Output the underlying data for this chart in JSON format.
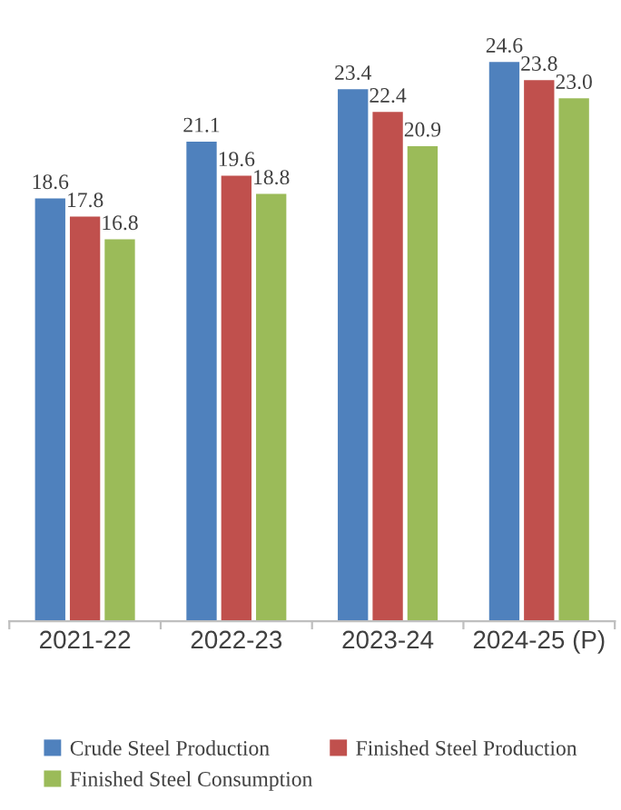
{
  "chart_data": {
    "type": "bar",
    "categories": [
      "2021-22",
      "2022-23",
      "2023-24",
      "2024-25 (P)"
    ],
    "series": [
      {
        "name": "Crude Steel Production",
        "color": "#4f81bd",
        "values": [
          18.6,
          21.1,
          23.4,
          24.6
        ],
        "value_labels": [
          "18.6",
          "21.1",
          "23.4",
          "24.6"
        ]
      },
      {
        "name": "Finished Steel Production",
        "color": "#c0504d",
        "values": [
          17.8,
          19.6,
          22.4,
          23.8
        ],
        "value_labels": [
          "17.8",
          "19.6",
          "22.4",
          "23.8"
        ]
      },
      {
        "name": "Finished Steel Consumption",
        "color": "#9bbb59",
        "values": [
          16.8,
          18.8,
          20.9,
          23.0
        ],
        "value_labels": [
          "16.8",
          "18.8",
          "20.9",
          "23.0"
        ]
      }
    ],
    "legend": "bottom",
    "grid": false,
    "tick_labels": "x"
  }
}
